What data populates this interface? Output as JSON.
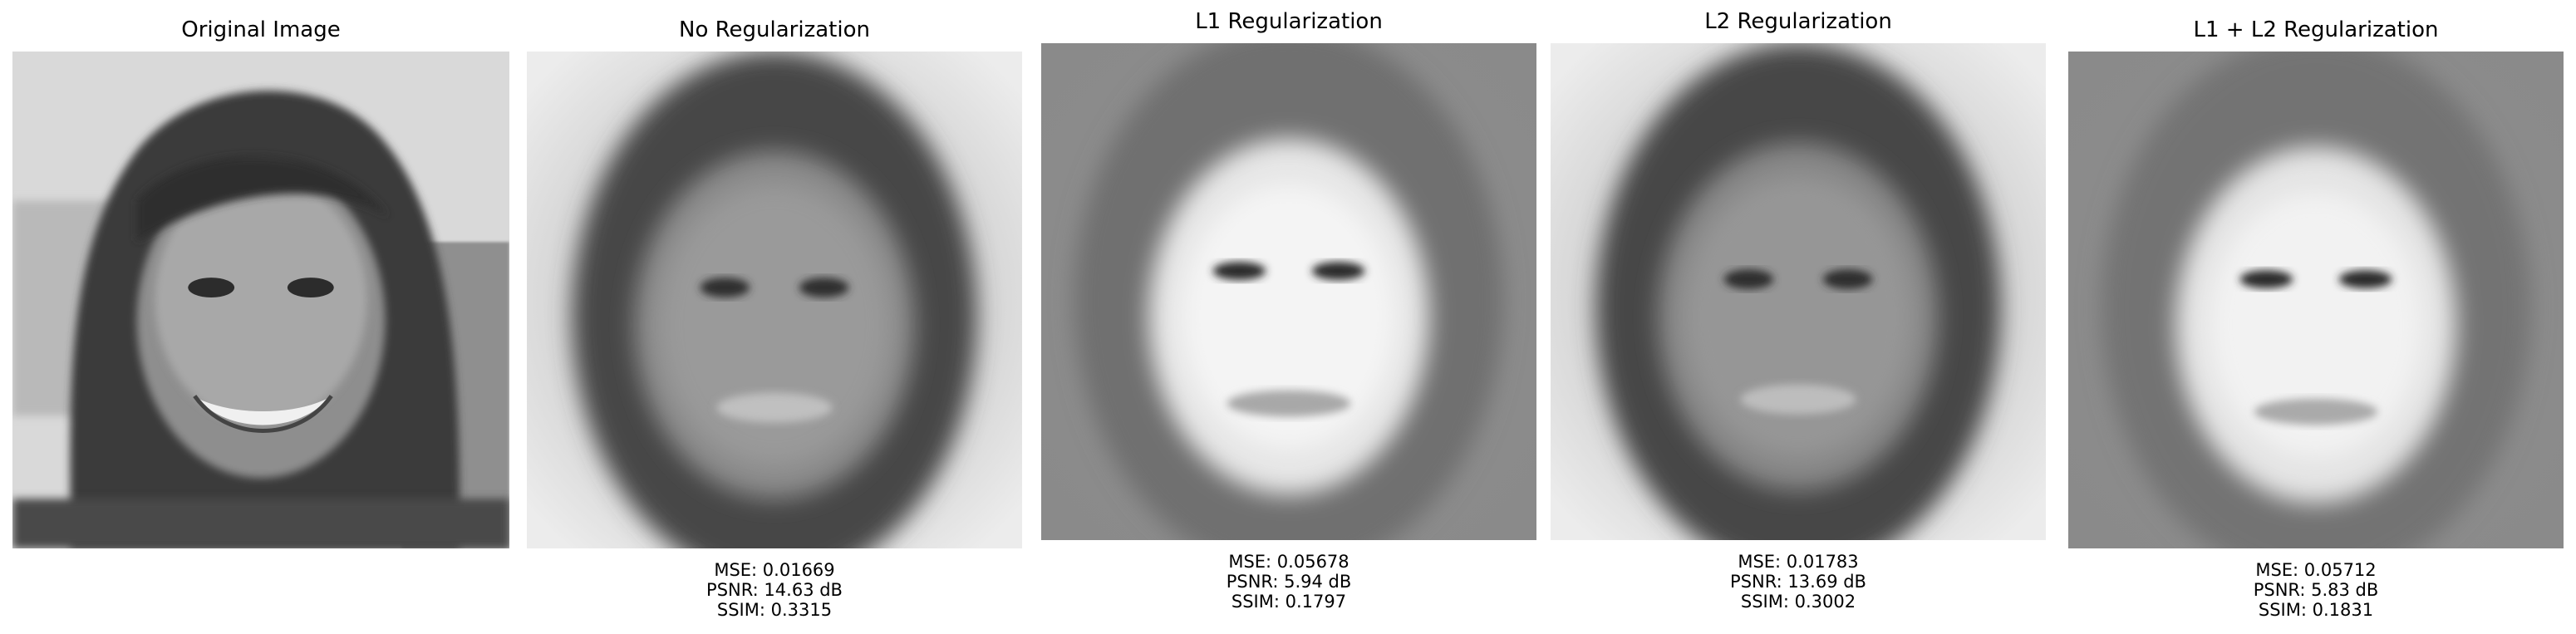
{
  "panels": [
    {
      "title": "Original Image",
      "image": "original-face-photo",
      "metrics": null
    },
    {
      "title": "No Regularization",
      "image": "blurred-face-reconstruction-dark",
      "metrics": {
        "mse": "MSE: 0.01669",
        "psnr": "PSNR: 14.63 dB",
        "ssim": "SSIM: 0.3315"
      }
    },
    {
      "title": "L1 Regularization",
      "image": "blurred-face-reconstruction-bright",
      "metrics": {
        "mse": "MSE: 0.05678",
        "psnr": "PSNR: 5.94 dB",
        "ssim": "SSIM: 0.1797"
      }
    },
    {
      "title": "L2 Regularization",
      "image": "blurred-face-reconstruction-dark",
      "metrics": {
        "mse": "MSE: 0.01783",
        "psnr": "PSNR: 13.69 dB",
        "ssim": "SSIM: 0.3002"
      }
    },
    {
      "title": "L1 + L2 Regularization",
      "image": "blurred-face-reconstruction-bright",
      "metrics": {
        "mse": "MSE: 0.05712",
        "psnr": "PSNR: 5.83 dB",
        "ssim": "SSIM: 0.1831"
      }
    }
  ]
}
